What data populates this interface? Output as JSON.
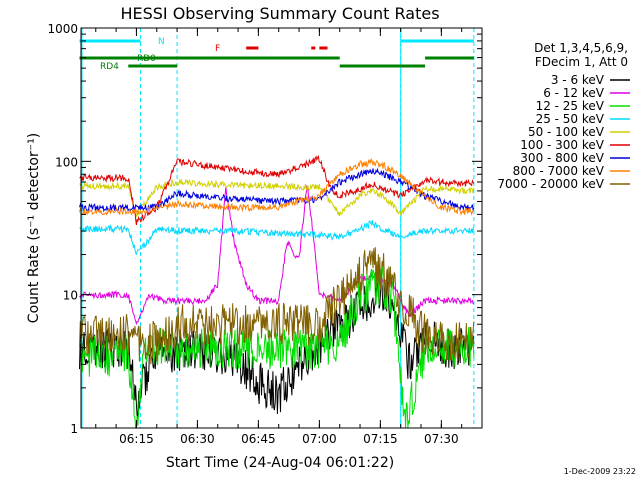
{
  "chart_data": {
    "type": "line",
    "title": "HESSI Observing Summary Count Rates",
    "xlabel": "Start Time (24-Aug-04 06:01:22)",
    "ylabel": "Count Rate (s⁻¹ detector⁻¹)",
    "ylog": true,
    "ylim": [
      1,
      1000
    ],
    "xlim": [
      "06:01:22",
      "07:40:00"
    ],
    "x_ticks": [
      "06:15",
      "06:30",
      "06:45",
      "07:00",
      "07:15",
      "07:30"
    ],
    "y_ticks": [
      "1",
      "10",
      "100",
      "1000"
    ],
    "legend_position": "right",
    "legend_header": [
      "Det 1,3,4,5,6,9,",
      "FDecim 1, Att 0"
    ],
    "series": [
      {
        "name": "3 - 6 keV",
        "color": "#000000",
        "x": [
          "06:01",
          "06:10",
          "06:13",
          "06:15",
          "06:18",
          "06:22",
          "06:28",
          "06:35",
          "06:40",
          "06:45",
          "06:50",
          "06:55",
          "07:00",
          "07:05",
          "07:10",
          "07:13",
          "07:15",
          "07:18",
          "07:22",
          "07:26",
          "07:30",
          "07:35",
          "07:38"
        ],
        "values": [
          4,
          4,
          4,
          1.4,
          3,
          3.5,
          4,
          3.6,
          3.2,
          2.2,
          1.8,
          3,
          4,
          5.8,
          8,
          10,
          11,
          9,
          3,
          5,
          4,
          4,
          4
        ]
      },
      {
        "name": "6 - 12 keV",
        "color": "#e000e0",
        "x": [
          "06:01",
          "06:10",
          "06:13",
          "06:15",
          "06:18",
          "06:22",
          "06:28",
          "06:32",
          "06:35",
          "06:37",
          "06:39",
          "06:42",
          "06:45",
          "06:50",
          "06:52",
          "06:55",
          "06:57",
          "06:59",
          "07:00",
          "07:05",
          "07:10",
          "07:13",
          "07:15",
          "07:18",
          "07:22",
          "07:26",
          "07:30",
          "07:35",
          "07:38"
        ],
        "values": [
          10,
          10,
          10,
          6,
          10,
          9,
          9,
          9,
          12,
          65,
          25,
          12,
          9,
          9,
          25,
          18,
          70,
          20,
          10,
          9,
          13,
          14,
          13,
          12,
          7,
          9,
          9,
          9,
          9
        ]
      },
      {
        "name": "12 - 25 keV",
        "color": "#00e000",
        "x": [
          "06:01",
          "06:10",
          "06:13",
          "06:15",
          "06:17",
          "06:20",
          "06:30",
          "06:40",
          "06:50",
          "07:00",
          "07:05",
          "07:10",
          "07:15",
          "07:18",
          "07:21",
          "07:26",
          "07:30",
          "07:35",
          "07:38"
        ],
        "values": [
          3.5,
          3.5,
          3.5,
          1,
          3.5,
          4,
          4,
          4,
          4,
          4,
          4.5,
          10,
          12,
          10,
          1,
          4,
          4,
          4,
          4
        ]
      },
      {
        "name": "25 - 50 keV",
        "color": "#00d8ff",
        "x": [
          "06:01",
          "06:10",
          "06:13",
          "06:15",
          "06:20",
          "06:30",
          "06:40",
          "06:50",
          "07:00",
          "07:05",
          "07:10",
          "07:13",
          "07:16",
          "07:20",
          "07:26",
          "07:30",
          "07:35",
          "07:38"
        ],
        "values": [
          31,
          31,
          31,
          20,
          31,
          30,
          30,
          29,
          28,
          27,
          31,
          35,
          30,
          28,
          30,
          30,
          30,
          30
        ]
      },
      {
        "name": "50 - 100 keV",
        "color": "#d0d000",
        "x": [
          "06:01",
          "06:10",
          "06:13",
          "06:15",
          "06:20",
          "06:25",
          "06:30",
          "06:40",
          "06:50",
          "07:00",
          "07:05",
          "07:10",
          "07:13",
          "07:16",
          "07:20",
          "07:26",
          "07:30",
          "07:35",
          "07:38"
        ],
        "values": [
          65,
          65,
          65,
          40,
          64,
          70,
          68,
          66,
          65,
          64,
          40,
          55,
          60,
          55,
          40,
          62,
          62,
          60,
          60
        ]
      },
      {
        "name": "100 - 300 keV",
        "color": "#e00000",
        "x": [
          "06:01",
          "06:10",
          "06:13",
          "06:15",
          "06:20",
          "06:25",
          "06:30",
          "06:40",
          "06:50",
          "06:55",
          "07:00",
          "07:03",
          "07:05",
          "07:10",
          "07:13",
          "07:16",
          "07:20",
          "07:26",
          "07:30",
          "07:35",
          "07:38"
        ],
        "values": [
          75,
          75,
          75,
          35,
          45,
          100,
          95,
          85,
          80,
          90,
          105,
          60,
          55,
          62,
          68,
          62,
          55,
          72,
          70,
          68,
          70
        ]
      },
      {
        "name": "300 - 800 keV",
        "color": "#0000e0",
        "x": [
          "06:01",
          "06:10",
          "06:15",
          "06:20",
          "06:25",
          "06:30",
          "06:40",
          "06:50",
          "07:00",
          "07:05",
          "07:10",
          "07:13",
          "07:16",
          "07:20",
          "07:26",
          "07:30",
          "07:35",
          "07:38"
        ],
        "values": [
          45,
          45,
          45,
          45,
          58,
          55,
          52,
          50,
          52,
          70,
          80,
          85,
          80,
          70,
          55,
          50,
          45,
          45
        ]
      },
      {
        "name": "800 - 7000 keV",
        "color": "#ff8000",
        "x": [
          "06:01",
          "06:10",
          "06:15",
          "06:20",
          "06:25",
          "06:30",
          "06:40",
          "06:50",
          "07:00",
          "07:05",
          "07:10",
          "07:13",
          "07:16",
          "07:20",
          "07:26",
          "07:30",
          "07:35",
          "07:38"
        ],
        "values": [
          42,
          42,
          42,
          44,
          48,
          47,
          45,
          45,
          55,
          80,
          95,
          98,
          92,
          78,
          55,
          45,
          42,
          42
        ]
      },
      {
        "name": "7000 - 20000 keV",
        "color": "#806000",
        "x": [
          "06:01",
          "06:10",
          "06:13",
          "06:15",
          "06:20",
          "06:25",
          "06:30",
          "06:40",
          "06:50",
          "07:00",
          "07:05",
          "07:10",
          "07:13",
          "07:16",
          "07:20",
          "07:26",
          "07:30",
          "07:35",
          "07:38"
        ],
        "values": [
          5,
          5,
          5,
          4,
          4.5,
          6,
          6,
          6,
          6,
          6,
          9,
          14,
          17,
          14,
          9,
          5,
          4.5,
          4.5,
          4.5
        ]
      }
    ],
    "annotations": {
      "N": {
        "label": "N",
        "color": "#00e8ff",
        "intervals": [
          [
            "06:01",
            "06:16"
          ],
          [
            "07:20",
            "07:38"
          ]
        ]
      },
      "RD0": {
        "label": "RD0",
        "color": "#008000",
        "intervals": [
          [
            "06:01",
            "06:25"
          ],
          [
            "06:25",
            "07:05"
          ],
          [
            "07:26",
            "07:38"
          ]
        ]
      },
      "RD4": {
        "label": "RD4",
        "color": "#008000",
        "intervals": [
          [
            "06:13",
            "06:25"
          ],
          [
            "07:05",
            "07:26"
          ]
        ]
      },
      "F": {
        "label": "F",
        "color": "#e00000",
        "intervals": [
          [
            "06:42",
            "06:45"
          ],
          [
            "06:58",
            "06:59"
          ],
          [
            "07:00",
            "07:02"
          ]
        ]
      }
    },
    "night_boundaries": [
      "06:16",
      "06:25",
      "07:20",
      "07:38"
    ]
  },
  "footer": {
    "date": "1-Dec-2009 23:22"
  }
}
